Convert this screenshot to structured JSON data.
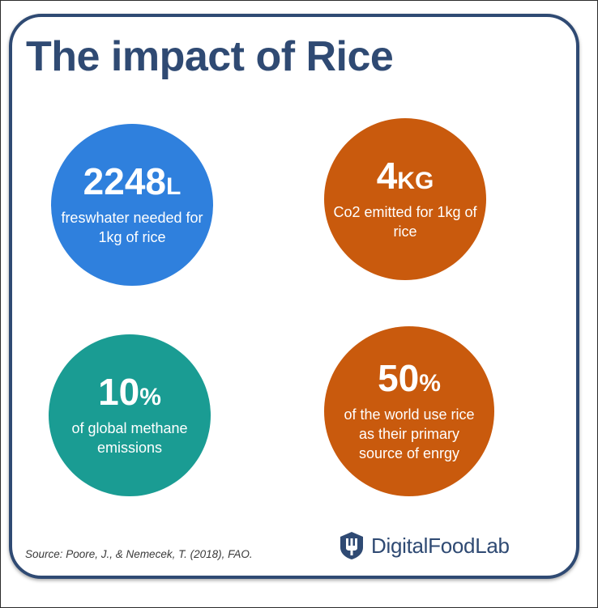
{
  "title": "The impact of Rice",
  "stats": {
    "water": {
      "number": "2248",
      "unit": "L",
      "description": "freswhater needed for 1kg of rice",
      "color": "#2f80dd"
    },
    "co2": {
      "number": "4",
      "unit": "KG",
      "description": "Co2 emitted for 1kg of rice",
      "color": "#c95a0d"
    },
    "methane": {
      "number": "10",
      "unit": "%",
      "description": "of global methane emissions",
      "color": "#1a9c93"
    },
    "energy": {
      "number": "50",
      "unit": "%",
      "description": "of the world use rice as their primary source of enrgy",
      "color": "#c95a0d"
    }
  },
  "source": "Source: Poore, J., & Nemecek, T. (2018), FAO.",
  "brand": {
    "name": "DigitalFoodLab",
    "icon": "fork-shield-icon",
    "color": "#2f4a73"
  }
}
